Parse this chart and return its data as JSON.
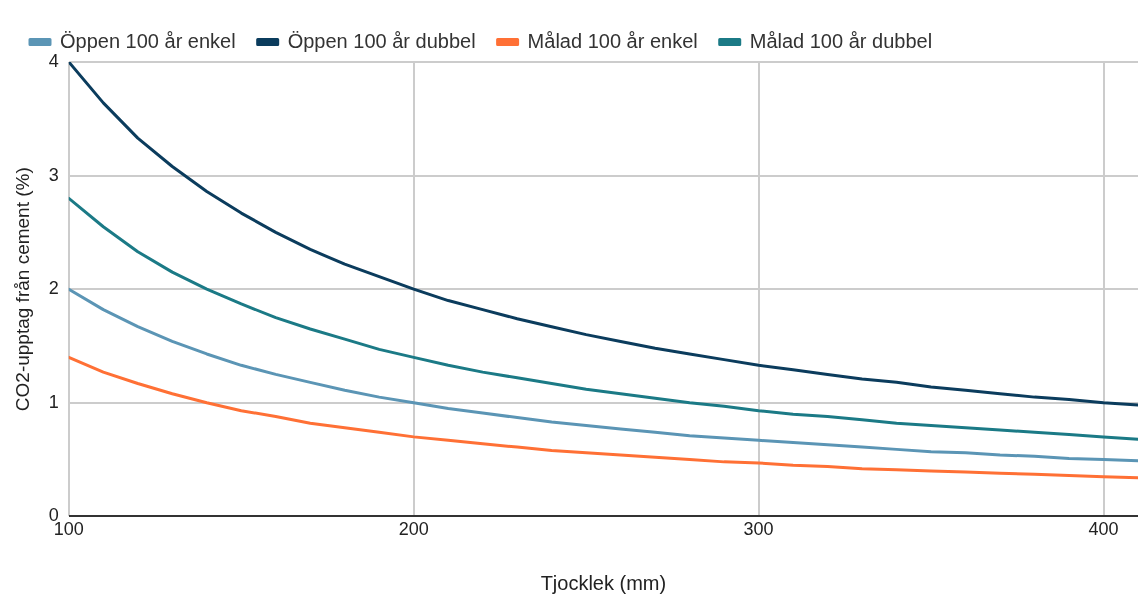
{
  "chart_data": {
    "type": "line",
    "xlabel": "Tjocklek (mm)",
    "ylabel": "CO2-upptag från cement (%)",
    "x": [
      100,
      110,
      120,
      130,
      140,
      150,
      160,
      170,
      180,
      190,
      200,
      210,
      220,
      230,
      240,
      250,
      260,
      270,
      280,
      290,
      300,
      310,
      320,
      330,
      340,
      350,
      360,
      370,
      380,
      390,
      400,
      410
    ],
    "series": [
      {
        "name": "Öppen 100 år enkel",
        "color": "#5b95b5",
        "values": [
          2,
          1.82,
          1.67,
          1.54,
          1.43,
          1.33,
          1.25,
          1.18,
          1.11,
          1.05,
          1,
          0.95,
          0.91,
          0.87,
          0.83,
          0.8,
          0.77,
          0.74,
          0.71,
          0.69,
          0.67,
          0.65,
          0.63,
          0.61,
          0.59,
          0.57,
          0.56,
          0.54,
          0.53,
          0.51,
          0.5,
          0.49
        ]
      },
      {
        "name": "Öppen 100 år dubbel",
        "color": "#0b3c5d",
        "values": [
          4,
          3.64,
          3.33,
          3.08,
          2.86,
          2.67,
          2.5,
          2.35,
          2.22,
          2.11,
          2,
          1.9,
          1.82,
          1.74,
          1.67,
          1.6,
          1.54,
          1.48,
          1.43,
          1.38,
          1.33,
          1.29,
          1.25,
          1.21,
          1.18,
          1.14,
          1.11,
          1.08,
          1.05,
          1.03,
          1,
          0.98
        ]
      },
      {
        "name": "Målad 100 år enkel",
        "color": "#ff7035",
        "values": [
          1.4,
          1.27,
          1.17,
          1.08,
          1,
          0.93,
          0.88,
          0.82,
          0.78,
          0.74,
          0.7,
          0.67,
          0.64,
          0.61,
          0.58,
          0.56,
          0.54,
          0.52,
          0.5,
          0.48,
          0.47,
          0.45,
          0.44,
          0.42,
          0.41,
          0.4,
          0.39,
          0.38,
          0.37,
          0.36,
          0.35,
          0.34
        ]
      },
      {
        "name": "Målad 100 år dubbel",
        "color": "#1b7a86",
        "values": [
          2.8,
          2.55,
          2.33,
          2.15,
          2,
          1.87,
          1.75,
          1.65,
          1.56,
          1.47,
          1.4,
          1.33,
          1.27,
          1.22,
          1.17,
          1.12,
          1.08,
          1.04,
          1,
          0.97,
          0.93,
          0.9,
          0.88,
          0.85,
          0.82,
          0.8,
          0.78,
          0.76,
          0.74,
          0.72,
          0.7,
          0.68
        ]
      }
    ],
    "xlim": [
      100,
      410
    ],
    "xticks": [
      100,
      200,
      300,
      400
    ],
    "ylim": [
      0,
      4
    ],
    "yticks": [
      0,
      1,
      2,
      3,
      4
    ],
    "grid": true,
    "legend": "top",
    "marker": "none",
    "line_style": "solid"
  }
}
